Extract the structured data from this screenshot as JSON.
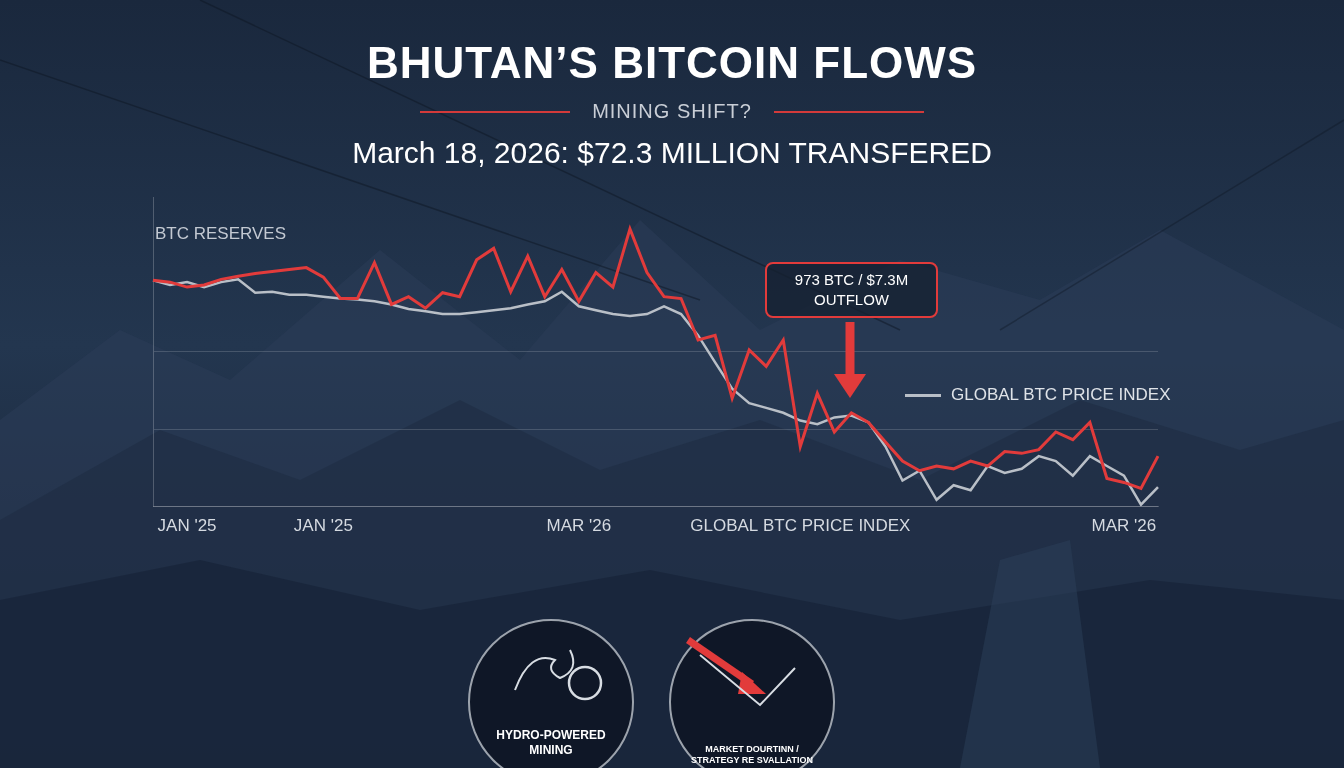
{
  "chart_data": {
    "type": "line",
    "title": "BHUTAN’S BITCOIN FLOWS",
    "subtitle": [
      "MINING SHIFT?",
      "March 18, 2026: $72.3 MILLION TRANSFERED"
    ],
    "categories": [
      null,
      null,
      "JAN '25",
      null,
      null,
      null,
      null,
      null,
      null,
      null,
      "JAN '25",
      null,
      null,
      null,
      null,
      null,
      null,
      null,
      null,
      null,
      null,
      null,
      null,
      null,
      null,
      "MAR '26",
      null,
      null,
      null,
      null,
      null,
      null,
      null,
      null,
      null,
      null,
      null,
      null,
      "GLOBAL BTC PRICE INDEX",
      null,
      null,
      null,
      null,
      null,
      null,
      null,
      null,
      null,
      null,
      null,
      null,
      null,
      null,
      null,
      null,
      null,
      null,
      "MAR '26",
      null,
      null
    ],
    "series": [
      {
        "name": "BTC RESERVES",
        "color": "#e23b3b",
        "values": [
          73.1,
          72.5,
          70.9,
          71.6,
          73.4,
          74.4,
          75.3,
          75.9,
          76.6,
          77.2,
          74.1,
          67.2,
          67.2,
          78.8,
          65.3,
          67.8,
          64.1,
          69.1,
          67.8,
          79.7,
          83.4,
          69.4,
          80.9,
          67.8,
          76.6,
          66.3,
          75.6,
          70.9,
          89.7,
          75.6,
          67.8,
          67.2,
          53.8,
          55.3,
          35.0,
          50.6,
          45.3,
          53.8,
          19.4,
          36.6,
          24.1,
          30.3,
          27.2,
          20.9,
          14.7,
          11.6,
          13.1,
          12.2,
          14.7,
          13.1,
          17.8,
          17.2,
          18.4,
          24.1,
          21.6,
          27.2,
          9.1,
          7.8,
          5.9,
          16.3
        ]
      },
      {
        "name": "GLOBAL BTC PRICE INDEX",
        "color": "#b9bfc7",
        "values": [
          73.1,
          71.6,
          72.5,
          70.9,
          72.5,
          73.4,
          69.1,
          69.4,
          68.4,
          68.4,
          67.8,
          67.2,
          66.9,
          66.3,
          65.3,
          63.8,
          63.1,
          62.2,
          62.2,
          62.8,
          63.4,
          64.1,
          65.3,
          66.3,
          69.4,
          64.7,
          63.4,
          62.2,
          61.6,
          62.2,
          64.7,
          62.2,
          55.3,
          46.6,
          38.1,
          33.4,
          31.9,
          30.3,
          27.8,
          26.6,
          28.8,
          29.4,
          27.2,
          19.4,
          8.4,
          11.6,
          2.2,
          6.9,
          5.3,
          13.1,
          10.9,
          12.2,
          16.3,
          14.7,
          10.0,
          16.3,
          13.1,
          10.0,
          0.6,
          6.3
        ]
      }
    ],
    "ylim": [
      0,
      100
    ],
    "yticks": [
      0,
      25,
      50
    ],
    "grid": true,
    "tick_labels": "x",
    "annotations": [
      "973 BTC / $7.3M\nOUTFLOW",
      "HYDRO-POWERED\nMINING",
      "MARKET DOURTINN /\nSTRATEGY RE SVALLATION"
    ]
  }
}
